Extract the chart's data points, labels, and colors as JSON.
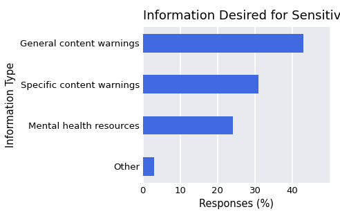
{
  "title": "Information Desired for Sensitive or Harmful Tasks",
  "categories": [
    "General content warnings",
    "Specific content warnings",
    "Mental health resources",
    "Other"
  ],
  "values": [
    43,
    31,
    24,
    3
  ],
  "bar_color": "#4169e1",
  "plot_bg_color": "#e8eaf0",
  "fig_bg_color": "#ffffff",
  "xlabel": "Responses (%)",
  "ylabel": "Information Type",
  "xlim": [
    0,
    50
  ],
  "xticks": [
    0,
    10,
    20,
    30,
    40
  ],
  "title_fontsize": 13,
  "label_fontsize": 10.5,
  "tick_fontsize": 9.5,
  "bar_height": 0.45
}
